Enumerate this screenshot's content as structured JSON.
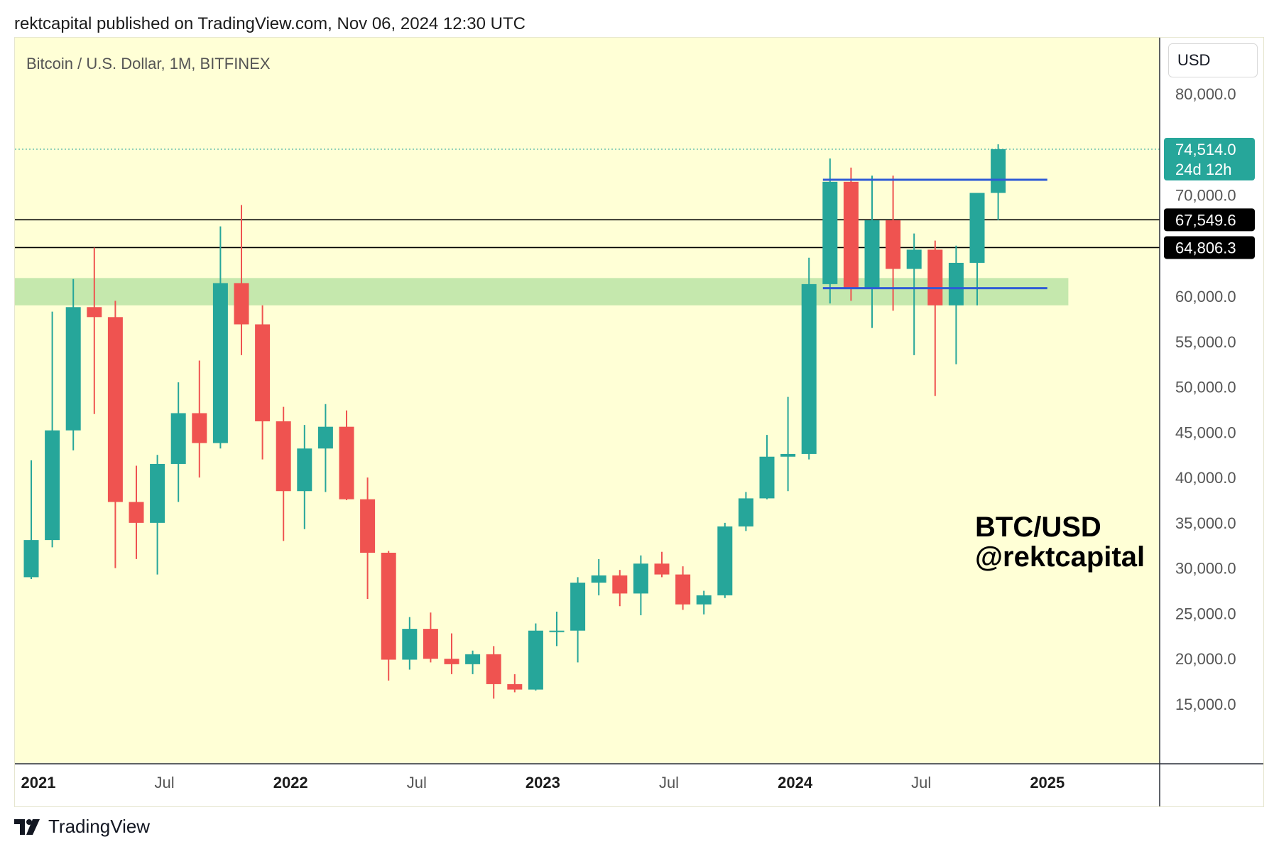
{
  "header": {
    "text": "rektcapital published on TradingView.com, Nov 06, 2024 12:30 UTC"
  },
  "symbol": {
    "text": "Bitcoin / U.S. Dollar, 1M, BITFINEX"
  },
  "currency": {
    "label": "USD"
  },
  "watermark": {
    "line1": "BTC/USD",
    "line2": "@rektcapital"
  },
  "footer": {
    "brand": "TradingView"
  },
  "colors": {
    "up": "#26a69a",
    "down": "#ef5350",
    "background": "#ffffd6",
    "zone": "#c5e8ad",
    "range": "#2f5bd6"
  },
  "chart_data": {
    "type": "candlestick",
    "y_ticks": [
      15000,
      20000,
      25000,
      30000,
      35000,
      40000,
      45000,
      50000,
      55000,
      60000,
      70000,
      80000
    ],
    "y_tick_labels": [
      "15,000.0",
      "20,000.0",
      "25,000.0",
      "30,000.0",
      "35,000.0",
      "40,000.0",
      "45,000.0",
      "50,000.0",
      "55,000.0",
      "60,000.0",
      "70,000.0",
      "80,000.0"
    ],
    "x_labels": [
      {
        "text": "2021",
        "index": 0,
        "bold": true
      },
      {
        "text": "Jul",
        "index": 6,
        "bold": false
      },
      {
        "text": "2022",
        "index": 12,
        "bold": true
      },
      {
        "text": "Jul",
        "index": 18,
        "bold": false
      },
      {
        "text": "2023",
        "index": 24,
        "bold": true
      },
      {
        "text": "Jul",
        "index": 30,
        "bold": false
      },
      {
        "text": "2024",
        "index": 36,
        "bold": true
      },
      {
        "text": "Jul",
        "index": 42,
        "bold": false
      },
      {
        "text": "2025",
        "index": 48,
        "bold": true
      }
    ],
    "candles": [
      {
        "o": 29000,
        "h": 41900,
        "l": 28800,
        "c": 33100
      },
      {
        "o": 33100,
        "h": 58300,
        "l": 32300,
        "c": 45200
      },
      {
        "o": 45200,
        "h": 61700,
        "l": 43000,
        "c": 58800
      },
      {
        "o": 58800,
        "h": 64800,
        "l": 47000,
        "c": 57700
      },
      {
        "o": 57700,
        "h": 59500,
        "l": 30000,
        "c": 37300
      },
      {
        "o": 37300,
        "h": 41300,
        "l": 31000,
        "c": 35000
      },
      {
        "o": 35000,
        "h": 42500,
        "l": 29300,
        "c": 41500
      },
      {
        "o": 41500,
        "h": 50500,
        "l": 37300,
        "c": 47100
      },
      {
        "o": 47100,
        "h": 52900,
        "l": 40000,
        "c": 43800
      },
      {
        "o": 43800,
        "h": 66900,
        "l": 43200,
        "c": 61300
      },
      {
        "o": 61300,
        "h": 69000,
        "l": 53500,
        "c": 56900
      },
      {
        "o": 56900,
        "h": 59000,
        "l": 42000,
        "c": 46200
      },
      {
        "o": 46200,
        "h": 47800,
        "l": 33000,
        "c": 38500
      },
      {
        "o": 38500,
        "h": 45800,
        "l": 34300,
        "c": 43200
      },
      {
        "o": 43200,
        "h": 48100,
        "l": 38400,
        "c": 45600
      },
      {
        "o": 45600,
        "h": 47400,
        "l": 37500,
        "c": 37600
      },
      {
        "o": 37600,
        "h": 40000,
        "l": 26600,
        "c": 31700
      },
      {
        "o": 31700,
        "h": 31900,
        "l": 17600,
        "c": 19900
      },
      {
        "o": 19900,
        "h": 24600,
        "l": 18800,
        "c": 23300
      },
      {
        "o": 23300,
        "h": 25100,
        "l": 19600,
        "c": 20000
      },
      {
        "o": 20000,
        "h": 22800,
        "l": 18300,
        "c": 19400
      },
      {
        "o": 19400,
        "h": 20900,
        "l": 18300,
        "c": 20500
      },
      {
        "o": 20500,
        "h": 21400,
        "l": 15600,
        "c": 17200
      },
      {
        "o": 17200,
        "h": 18300,
        "l": 16300,
        "c": 16600
      },
      {
        "o": 16600,
        "h": 23900,
        "l": 16500,
        "c": 23100
      },
      {
        "o": 23100,
        "h": 25200,
        "l": 21400,
        "c": 23100
      },
      {
        "o": 23100,
        "h": 29000,
        "l": 19600,
        "c": 28400
      },
      {
        "o": 28400,
        "h": 31000,
        "l": 27000,
        "c": 29200
      },
      {
        "o": 29200,
        "h": 29800,
        "l": 25800,
        "c": 27200
      },
      {
        "o": 27200,
        "h": 31400,
        "l": 24800,
        "c": 30500
      },
      {
        "o": 30500,
        "h": 31800,
        "l": 29000,
        "c": 29300
      },
      {
        "o": 29300,
        "h": 30200,
        "l": 25400,
        "c": 26000
      },
      {
        "o": 26000,
        "h": 27500,
        "l": 24900,
        "c": 27000
      },
      {
        "o": 27000,
        "h": 35000,
        "l": 26700,
        "c": 34600
      },
      {
        "o": 34600,
        "h": 38400,
        "l": 34100,
        "c": 37700
      },
      {
        "o": 37700,
        "h": 44700,
        "l": 37600,
        "c": 42300
      },
      {
        "o": 42300,
        "h": 48900,
        "l": 38500,
        "c": 42600
      },
      {
        "o": 42600,
        "h": 63800,
        "l": 42000,
        "c": 61200
      },
      {
        "o": 61200,
        "h": 73600,
        "l": 59200,
        "c": 71300
      },
      {
        "o": 71300,
        "h": 72700,
        "l": 59500,
        "c": 60700
      },
      {
        "o": 60700,
        "h": 71900,
        "l": 56500,
        "c": 67500
      },
      {
        "o": 67500,
        "h": 71900,
        "l": 58400,
        "c": 62700
      },
      {
        "o": 62700,
        "h": 66200,
        "l": 53500,
        "c": 64600
      },
      {
        "o": 64600,
        "h": 65500,
        "l": 49000,
        "c": 59000
      },
      {
        "o": 59000,
        "h": 65000,
        "l": 52500,
        "c": 63300
      },
      {
        "o": 63300,
        "h": 70000,
        "l": 59000,
        "c": 70200
      },
      {
        "o": 70200,
        "h": 75000,
        "l": 67500,
        "c": 74514
      }
    ],
    "h_levels": [
      67549.6,
      64806.3
    ],
    "h_level_labels": [
      "67,549.6",
      "64,806.3"
    ],
    "range_lines": [
      {
        "y": 71500,
        "from": 38,
        "to": 48
      },
      {
        "y": 60800,
        "from": 38,
        "to": 48
      }
    ],
    "zone": {
      "low": 59000,
      "high": 61800,
      "to": 49
    },
    "last_price": 74514,
    "last_price_label": "74,514.0",
    "countdown": "24d 12h"
  }
}
